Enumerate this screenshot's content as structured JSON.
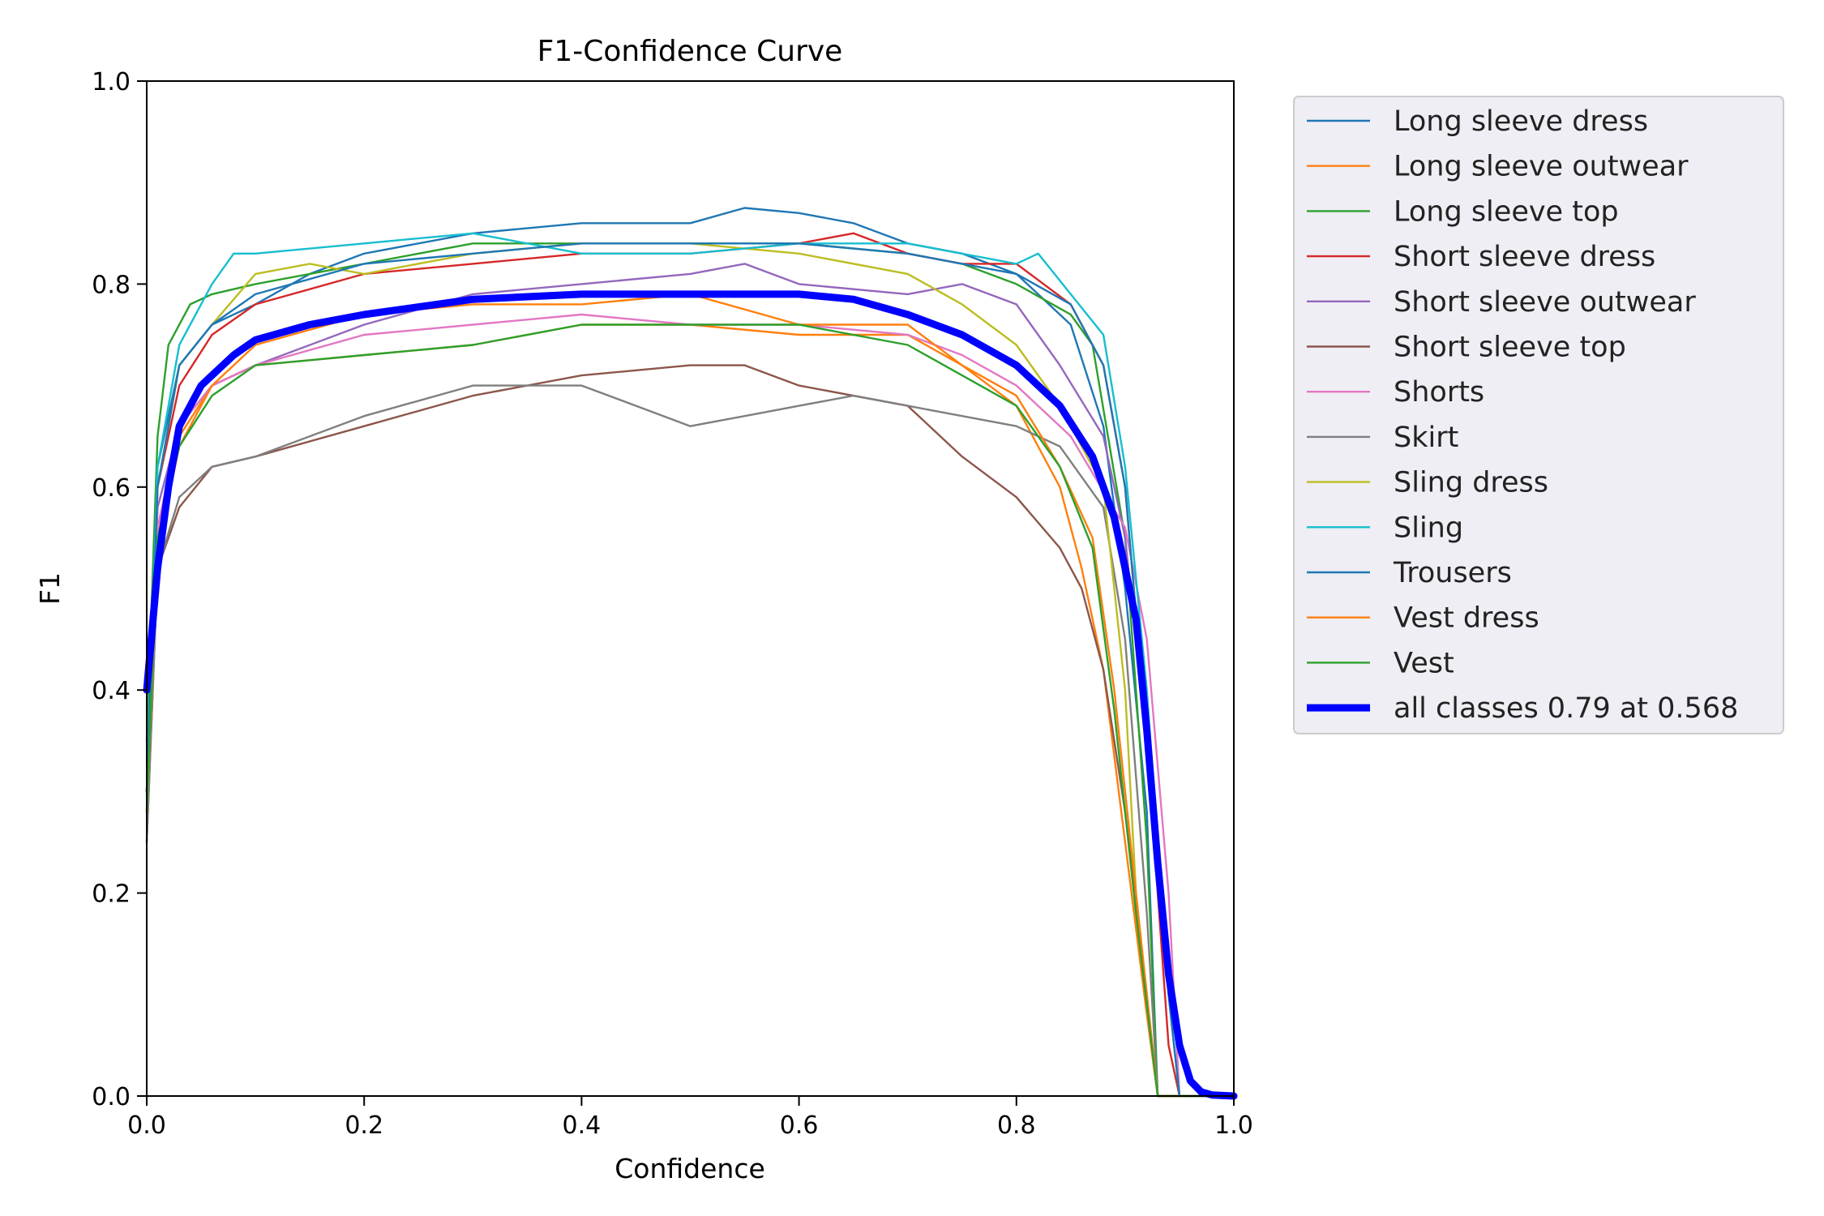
{
  "chart_data": {
    "type": "line",
    "title": "F1-Confidence Curve",
    "xlabel": "Confidence",
    "ylabel": "F1",
    "xlim": [
      0,
      1
    ],
    "ylim": [
      0,
      1
    ],
    "xticks": [
      "0.0",
      "0.2",
      "0.4",
      "0.6",
      "0.8",
      "1.0"
    ],
    "yticks": [
      "0.0",
      "0.2",
      "0.4",
      "0.6",
      "0.8",
      "1.0"
    ],
    "grid": false,
    "legend_position": "outside-right",
    "series": [
      {
        "name": "Long sleeve dress",
        "color": "#1f77b4",
        "x": [
          0,
          0.01,
          0.03,
          0.06,
          0.1,
          0.15,
          0.2,
          0.3,
          0.4,
          0.5,
          0.55,
          0.6,
          0.65,
          0.7,
          0.75,
          0.8,
          0.85,
          0.88,
          0.9,
          0.92,
          0.93,
          0.95,
          1.0
        ],
        "y": [
          0.3,
          0.62,
          0.72,
          0.76,
          0.78,
          0.81,
          0.83,
          0.85,
          0.86,
          0.86,
          0.875,
          0.87,
          0.86,
          0.84,
          0.83,
          0.81,
          0.76,
          0.66,
          0.5,
          0.28,
          0.0,
          0.0,
          0.0
        ]
      },
      {
        "name": "Long sleeve outwear",
        "color": "#ff7f0e",
        "x": [
          0,
          0.01,
          0.03,
          0.06,
          0.1,
          0.2,
          0.3,
          0.4,
          0.5,
          0.6,
          0.7,
          0.75,
          0.8,
          0.84,
          0.86,
          0.88,
          0.9,
          0.92,
          0.93,
          1.0
        ],
        "y": [
          0.3,
          0.55,
          0.65,
          0.7,
          0.72,
          0.73,
          0.74,
          0.76,
          0.76,
          0.75,
          0.75,
          0.72,
          0.68,
          0.6,
          0.52,
          0.42,
          0.25,
          0.08,
          0.0,
          0.0
        ]
      },
      {
        "name": "Long sleeve top",
        "color": "#2ca02c",
        "x": [
          0,
          0.01,
          0.02,
          0.04,
          0.06,
          0.1,
          0.2,
          0.3,
          0.4,
          0.5,
          0.6,
          0.7,
          0.75,
          0.8,
          0.85,
          0.87,
          0.9,
          0.92,
          0.93,
          1.0
        ],
        "y": [
          0.35,
          0.65,
          0.74,
          0.78,
          0.79,
          0.8,
          0.82,
          0.84,
          0.84,
          0.84,
          0.84,
          0.83,
          0.82,
          0.8,
          0.77,
          0.74,
          0.55,
          0.25,
          0.0,
          0.0
        ]
      },
      {
        "name": "Short sleeve dress",
        "color": "#d62728",
        "x": [
          0,
          0.01,
          0.03,
          0.06,
          0.1,
          0.2,
          0.3,
          0.4,
          0.5,
          0.6,
          0.65,
          0.7,
          0.75,
          0.8,
          0.85,
          0.88,
          0.9,
          0.92,
          0.94,
          0.95,
          1.0
        ],
        "y": [
          0.3,
          0.6,
          0.7,
          0.75,
          0.78,
          0.81,
          0.82,
          0.83,
          0.83,
          0.84,
          0.85,
          0.83,
          0.82,
          0.82,
          0.78,
          0.72,
          0.6,
          0.35,
          0.05,
          0.0,
          0.0
        ]
      },
      {
        "name": "Short sleeve outwear",
        "color": "#9467bd",
        "x": [
          0,
          0.01,
          0.03,
          0.06,
          0.1,
          0.2,
          0.3,
          0.4,
          0.5,
          0.55,
          0.6,
          0.7,
          0.75,
          0.8,
          0.84,
          0.88,
          0.9,
          0.92,
          0.94,
          0.95,
          1.0
        ],
        "y": [
          0.3,
          0.58,
          0.66,
          0.7,
          0.72,
          0.76,
          0.79,
          0.8,
          0.81,
          0.82,
          0.8,
          0.79,
          0.8,
          0.78,
          0.72,
          0.65,
          0.55,
          0.35,
          0.1,
          0.0,
          0.0
        ]
      },
      {
        "name": "Short sleeve top",
        "color": "#8c564b",
        "x": [
          0,
          0.01,
          0.03,
          0.06,
          0.1,
          0.2,
          0.3,
          0.4,
          0.5,
          0.55,
          0.6,
          0.7,
          0.75,
          0.8,
          0.84,
          0.86,
          0.88,
          0.9,
          0.92,
          0.93,
          1.0
        ],
        "y": [
          0.25,
          0.52,
          0.58,
          0.62,
          0.63,
          0.66,
          0.69,
          0.71,
          0.72,
          0.72,
          0.7,
          0.68,
          0.63,
          0.59,
          0.54,
          0.5,
          0.42,
          0.28,
          0.1,
          0.0,
          0.0
        ]
      },
      {
        "name": "Shorts",
        "color": "#e377c2",
        "x": [
          0,
          0.01,
          0.03,
          0.06,
          0.1,
          0.2,
          0.3,
          0.4,
          0.5,
          0.6,
          0.7,
          0.75,
          0.8,
          0.85,
          0.9,
          0.92,
          0.94,
          0.95,
          1.0
        ],
        "y": [
          0.3,
          0.56,
          0.66,
          0.7,
          0.72,
          0.75,
          0.76,
          0.77,
          0.76,
          0.76,
          0.75,
          0.73,
          0.7,
          0.65,
          0.56,
          0.45,
          0.2,
          0.0,
          0.0
        ]
      },
      {
        "name": "Skirt",
        "color": "#7f7f7f",
        "x": [
          0,
          0.01,
          0.03,
          0.06,
          0.1,
          0.2,
          0.3,
          0.4,
          0.45,
          0.5,
          0.55,
          0.6,
          0.65,
          0.7,
          0.75,
          0.8,
          0.84,
          0.88,
          0.9,
          0.92,
          0.93,
          1.0
        ],
        "y": [
          0.25,
          0.52,
          0.59,
          0.62,
          0.63,
          0.67,
          0.7,
          0.7,
          0.68,
          0.66,
          0.67,
          0.68,
          0.69,
          0.68,
          0.67,
          0.66,
          0.64,
          0.58,
          0.45,
          0.18,
          0.0,
          0.0
        ]
      },
      {
        "name": "Sling dress",
        "color": "#bcbd22",
        "x": [
          0,
          0.01,
          0.03,
          0.06,
          0.1,
          0.15,
          0.2,
          0.3,
          0.4,
          0.5,
          0.6,
          0.7,
          0.75,
          0.8,
          0.84,
          0.88,
          0.9,
          0.91,
          0.93,
          1.0
        ],
        "y": [
          0.3,
          0.6,
          0.72,
          0.76,
          0.81,
          0.82,
          0.81,
          0.83,
          0.84,
          0.84,
          0.83,
          0.81,
          0.78,
          0.74,
          0.68,
          0.6,
          0.4,
          0.2,
          0.0,
          0.0
        ]
      },
      {
        "name": "Sling",
        "color": "#17becf",
        "x": [
          0,
          0.01,
          0.03,
          0.06,
          0.08,
          0.1,
          0.2,
          0.3,
          0.4,
          0.5,
          0.6,
          0.7,
          0.8,
          0.82,
          0.85,
          0.88,
          0.9,
          0.92,
          0.94,
          0.95,
          1.0
        ],
        "y": [
          0.3,
          0.62,
          0.74,
          0.8,
          0.83,
          0.83,
          0.84,
          0.85,
          0.83,
          0.83,
          0.84,
          0.84,
          0.82,
          0.83,
          0.79,
          0.75,
          0.62,
          0.4,
          0.1,
          0.0,
          0.0
        ]
      },
      {
        "name": "Trousers",
        "color": "#1f77b4",
        "x": [
          0,
          0.01,
          0.03,
          0.06,
          0.1,
          0.2,
          0.3,
          0.4,
          0.5,
          0.6,
          0.7,
          0.75,
          0.8,
          0.85,
          0.88,
          0.9,
          0.92,
          0.94,
          0.95,
          1.0
        ],
        "y": [
          0.3,
          0.6,
          0.72,
          0.76,
          0.79,
          0.82,
          0.83,
          0.84,
          0.84,
          0.84,
          0.83,
          0.82,
          0.81,
          0.78,
          0.72,
          0.6,
          0.35,
          0.1,
          0.0,
          0.0
        ]
      },
      {
        "name": "Vest dress",
        "color": "#ff7f0e",
        "x": [
          0,
          0.01,
          0.03,
          0.06,
          0.1,
          0.2,
          0.3,
          0.4,
          0.5,
          0.6,
          0.7,
          0.75,
          0.8,
          0.84,
          0.87,
          0.89,
          0.91,
          0.93,
          1.0
        ],
        "y": [
          0.28,
          0.54,
          0.64,
          0.7,
          0.74,
          0.77,
          0.78,
          0.78,
          0.79,
          0.76,
          0.76,
          0.72,
          0.69,
          0.62,
          0.55,
          0.4,
          0.2,
          0.0,
          0.0
        ]
      },
      {
        "name": "Vest",
        "color": "#2ca02c",
        "x": [
          0,
          0.01,
          0.03,
          0.06,
          0.1,
          0.2,
          0.3,
          0.4,
          0.5,
          0.6,
          0.7,
          0.75,
          0.8,
          0.84,
          0.87,
          0.89,
          0.91,
          0.93,
          1.0
        ],
        "y": [
          0.28,
          0.55,
          0.64,
          0.69,
          0.72,
          0.73,
          0.74,
          0.76,
          0.76,
          0.76,
          0.74,
          0.71,
          0.68,
          0.62,
          0.54,
          0.38,
          0.18,
          0.0,
          0.0
        ]
      },
      {
        "name": "all classes 0.79 at 0.568",
        "color": "#0000ff",
        "bold": true,
        "x": [
          0,
          0.01,
          0.02,
          0.03,
          0.05,
          0.08,
          0.1,
          0.15,
          0.2,
          0.3,
          0.4,
          0.5,
          0.568,
          0.6,
          0.65,
          0.7,
          0.75,
          0.8,
          0.84,
          0.87,
          0.89,
          0.91,
          0.92,
          0.93,
          0.94,
          0.95,
          0.96,
          0.97,
          0.98,
          1.0
        ],
        "y": [
          0.4,
          0.52,
          0.6,
          0.66,
          0.7,
          0.73,
          0.745,
          0.76,
          0.77,
          0.785,
          0.79,
          0.79,
          0.79,
          0.79,
          0.785,
          0.77,
          0.75,
          0.72,
          0.68,
          0.63,
          0.57,
          0.47,
          0.36,
          0.23,
          0.12,
          0.05,
          0.015,
          0.004,
          0.001,
          0.0
        ]
      }
    ]
  }
}
